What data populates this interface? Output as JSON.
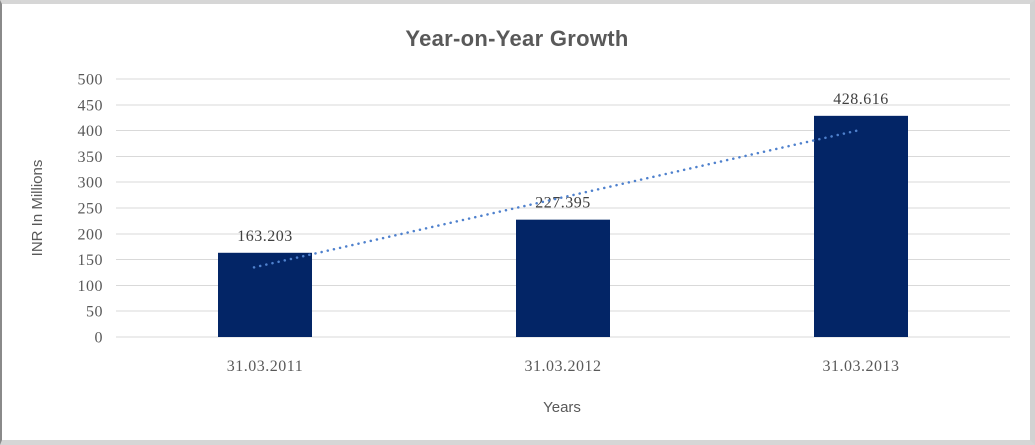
{
  "chart_data": {
    "type": "bar",
    "title": "Year-on-Year Growth",
    "xlabel": "Years",
    "ylabel": "INR In Millions",
    "categories": [
      "31.03.2011",
      "31.03.2012",
      "31.03.2013"
    ],
    "values": [
      163.203,
      227.395,
      428.616
    ],
    "data_labels": [
      "163.203",
      "227.395",
      "428.616"
    ],
    "ylim": [
      0,
      500
    ],
    "ytick_step": 50,
    "ytick_labels": [
      "0",
      "50",
      "100",
      "150",
      "200",
      "250",
      "300",
      "350",
      "400",
      "450",
      "500"
    ],
    "grid": true,
    "legend": "none",
    "trendline": {
      "type": "linear",
      "style": "dotted"
    }
  },
  "colors": {
    "bar": "#032566",
    "trendline": "#4f81cd",
    "gridline": "#d9d9d9",
    "title_text": "#595959",
    "axis_text": "#595959",
    "data_label_text": "#404040",
    "background": "#ffffff",
    "border": "#d6d6d6",
    "border_left": "#8a8a8a"
  }
}
